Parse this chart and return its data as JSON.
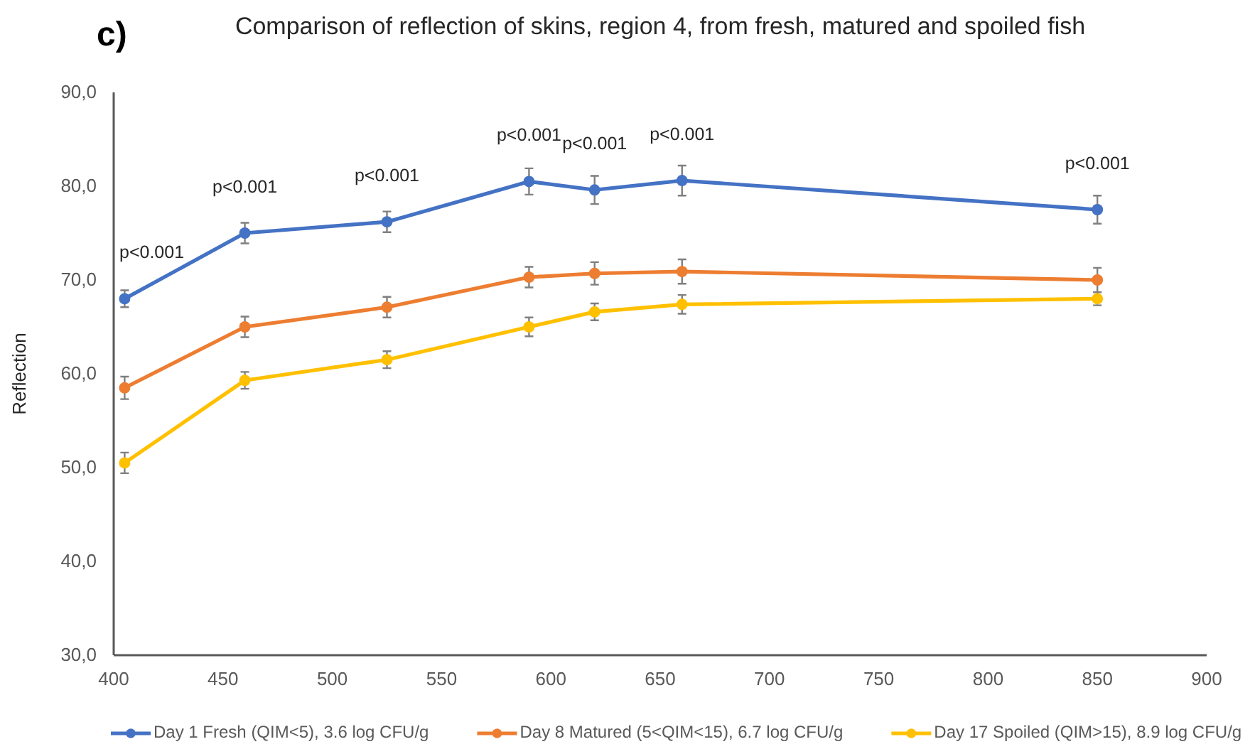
{
  "chart_data": {
    "type": "line",
    "title": "Comparison of reflection of skins, region 4, from fresh, matured and spoiled fish",
    "ylabel": "Reflection",
    "x": [
      405,
      460,
      525,
      590,
      620,
      660,
      850
    ],
    "series": [
      {
        "name": "Day 1 Fresh (QIM<5), 3.6 log CFU/g",
        "color": "#4472c4",
        "values": [
          68.0,
          75.0,
          76.2,
          80.5,
          79.6,
          80.6,
          77.5
        ],
        "errors": [
          0.9,
          1.1,
          1.1,
          1.4,
          1.5,
          1.6,
          1.5
        ]
      },
      {
        "name": "Day 8 Matured (5<QIM<15), 6.7 log CFU/g",
        "color": "#ed7d31",
        "values": [
          58.5,
          65.0,
          67.1,
          70.3,
          70.7,
          70.9,
          70.0
        ],
        "errors": [
          1.2,
          1.1,
          1.1,
          1.1,
          1.2,
          1.3,
          1.3
        ]
      },
      {
        "name": "Day 17 Spoiled (QIM>15), 8.9 log CFU/g",
        "color": "#ffc000",
        "values": [
          50.5,
          59.3,
          61.5,
          65.0,
          66.6,
          67.4,
          68.0
        ],
        "errors": [
          1.1,
          0.9,
          0.9,
          1.0,
          0.9,
          1.0,
          0.7
        ]
      }
    ],
    "xlim": [
      400,
      900
    ],
    "xticks": [
      400,
      450,
      500,
      550,
      600,
      650,
      700,
      750,
      800,
      850,
      900
    ],
    "ylim": [
      30,
      90
    ],
    "yticks": [
      {
        "value": 30,
        "label": "30,0"
      },
      {
        "value": 40,
        "label": "40,0"
      },
      {
        "value": 50,
        "label": "50,0"
      },
      {
        "value": 60,
        "label": "60,0"
      },
      {
        "value": 70,
        "label": "70,0"
      },
      {
        "value": 80,
        "label": "80,0"
      },
      {
        "value": 90,
        "label": "90,0"
      }
    ],
    "annotations": [
      "c)",
      {
        "text": "p<0.001",
        "x": 405,
        "y": 68.0
      },
      {
        "text": "p<0.001",
        "x": 460,
        "y": 75.0
      },
      {
        "text": "p<0.001",
        "x": 525,
        "y": 76.2
      },
      {
        "text": "p<0.001",
        "x": 590,
        "y": 80.5
      },
      {
        "text": "p<0.001",
        "x": 620,
        "y": 79.6
      },
      {
        "text": "p<0.001",
        "x": 660,
        "y": 80.6
      },
      {
        "text": "p<0.001",
        "x": 850,
        "y": 77.5
      }
    ],
    "legend": "bottom",
    "marker": "circle",
    "line_style": "solid"
  }
}
